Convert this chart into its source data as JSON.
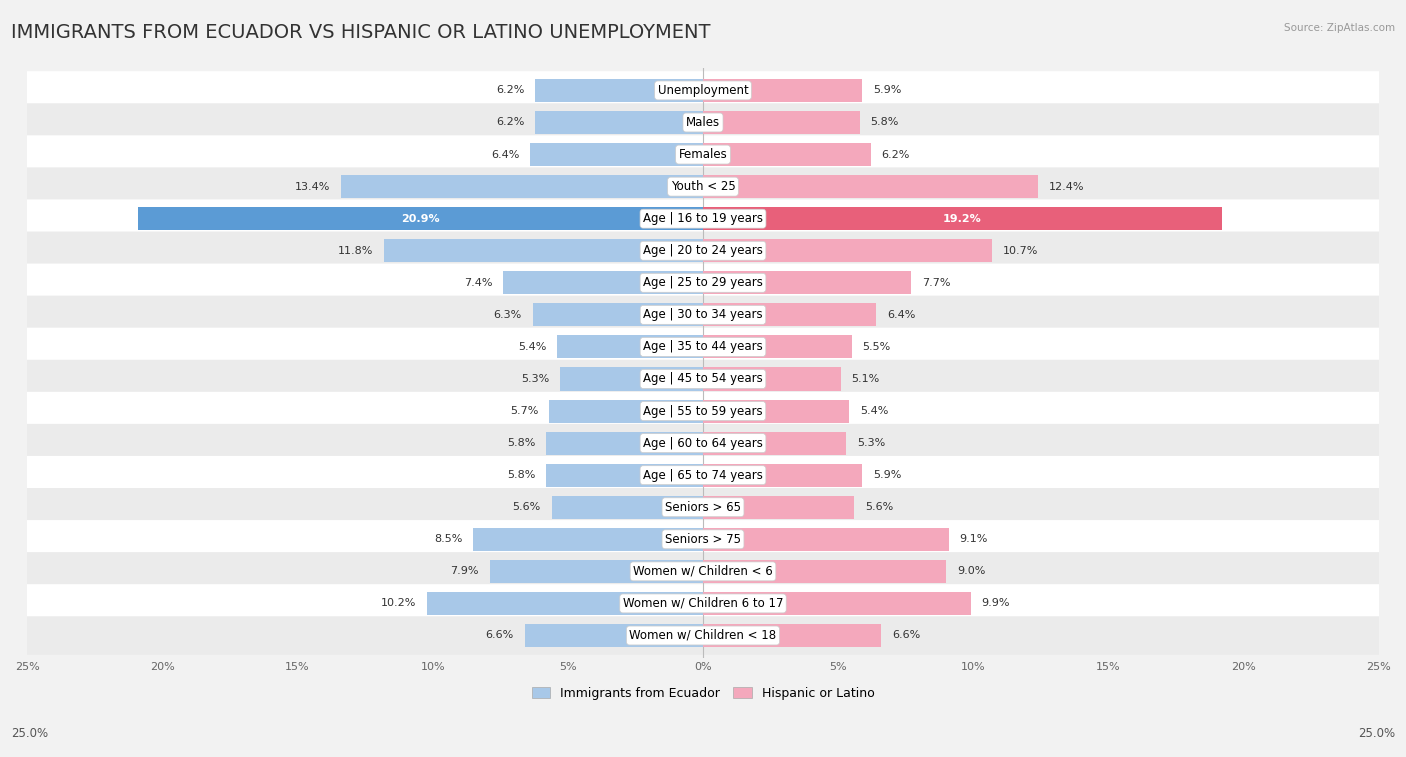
{
  "title": "IMMIGRANTS FROM ECUADOR VS HISPANIC OR LATINO UNEMPLOYMENT",
  "source": "Source: ZipAtlas.com",
  "categories": [
    "Unemployment",
    "Males",
    "Females",
    "Youth < 25",
    "Age | 16 to 19 years",
    "Age | 20 to 24 years",
    "Age | 25 to 29 years",
    "Age | 30 to 34 years",
    "Age | 35 to 44 years",
    "Age | 45 to 54 years",
    "Age | 55 to 59 years",
    "Age | 60 to 64 years",
    "Age | 65 to 74 years",
    "Seniors > 65",
    "Seniors > 75",
    "Women w/ Children < 6",
    "Women w/ Children 6 to 17",
    "Women w/ Children < 18"
  ],
  "ecuador_values": [
    6.2,
    6.2,
    6.4,
    13.4,
    20.9,
    11.8,
    7.4,
    6.3,
    5.4,
    5.3,
    5.7,
    5.8,
    5.8,
    5.6,
    8.5,
    7.9,
    10.2,
    6.6
  ],
  "hispanic_values": [
    5.9,
    5.8,
    6.2,
    12.4,
    19.2,
    10.7,
    7.7,
    6.4,
    5.5,
    5.1,
    5.4,
    5.3,
    5.9,
    5.6,
    9.1,
    9.0,
    9.9,
    6.6
  ],
  "ecuador_color": "#a8c8e8",
  "hispanic_color": "#f4a8bc",
  "ecuador_highlight_color": "#5b9bd5",
  "hispanic_highlight_color": "#e8607a",
  "background_color": "#f2f2f2",
  "row_bg_even": "#ffffff",
  "row_bg_odd": "#ebebeb",
  "max_value": 25.0,
  "legend_ecuador": "Immigrants from Ecuador",
  "legend_hispanic": "Hispanic or Latino",
  "title_fontsize": 14,
  "label_fontsize": 8.5,
  "value_fontsize": 8.0
}
